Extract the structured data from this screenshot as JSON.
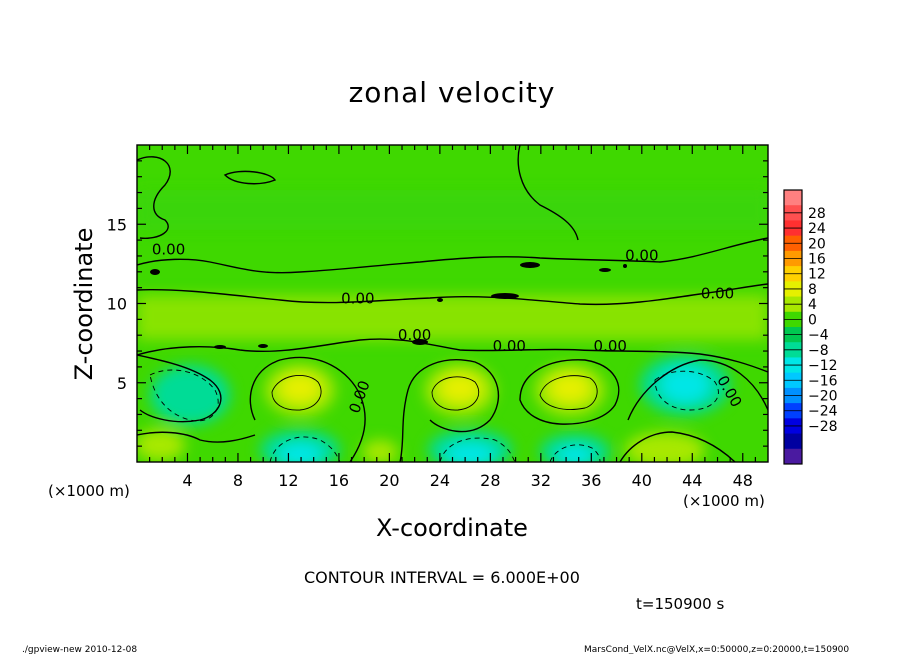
{
  "chart_data": {
    "type": "heatmap",
    "title": "zonal velocity",
    "xlabel": "X-coordinate",
    "ylabel": "Z-coordinate",
    "x_unit_left": "(×1000 m)",
    "x_unit_right": "(×1000 m)",
    "x_range": [
      0,
      50
    ],
    "y_range": [
      0,
      20
    ],
    "x_ticks": [
      4,
      8,
      12,
      16,
      20,
      24,
      28,
      32,
      36,
      40,
      44,
      48
    ],
    "y_ticks": [
      5,
      10,
      15
    ],
    "contour_interval_text": "CONTOUR INTERVAL = 6.000E+00",
    "time_text": "t=150900 s",
    "contour_labels": [
      "0.00",
      "0.00",
      "0.00",
      "0.00",
      "0.00",
      "0.00",
      "0.00",
      "0.00",
      "0.00"
    ],
    "colorbar": {
      "labels": [
        "28",
        "24",
        "20",
        "16",
        "12",
        "8",
        "4",
        "0",
        "−4",
        "−8",
        "−12",
        "−16",
        "−20",
        "−24",
        "−28"
      ],
      "colors": [
        "#ff8080",
        "#ff5050",
        "#ff3030",
        "#ff6000",
        "#ff9a00",
        "#ffd000",
        "#e6f000",
        "#a8e800",
        "#3fd800",
        "#00c850",
        "#00dc96",
        "#00e6e6",
        "#00c8ff",
        "#0090ff",
        "#0040ff",
        "#0000e0",
        "#0000a0",
        "#4a1aa0"
      ]
    }
  },
  "footer": {
    "left": "./gpview-new  2010-12-08",
    "right": "MarsCond_VelX.nc@VelX,x=0:50000,z=0:20000,t=150900"
  }
}
